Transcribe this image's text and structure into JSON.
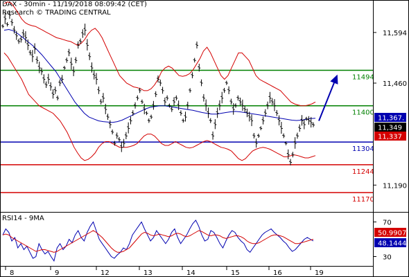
{
  "header": {
    "line1": "DAX - 30min - 11/19/2018 08:09:42 (CET)",
    "line2": "Research © TRADING CENTRAL"
  },
  "chart_data": {
    "type": "ohlc",
    "instrument": "DAX",
    "timeframe": "30min",
    "price_panel": {
      "y_ticks": [
        11594,
        11460,
        11190
      ],
      "y_tick_labels": [
        "11,594",
        "11,460",
        "11,190"
      ],
      "ylim": [
        11130,
        11680
      ],
      "levels": [
        {
          "label": "11494",
          "value": 11494,
          "color": "#008000"
        },
        {
          "label": "11400",
          "value": 11400,
          "color": "#008000"
        },
        {
          "label": "11304",
          "value": 11304,
          "color": "#0000b0"
        },
        {
          "label": "11244",
          "value": 11244,
          "color": "#d40000"
        },
        {
          "label": "11170",
          "value": 11170,
          "color": "#d40000"
        }
      ],
      "value_tags": [
        {
          "label": "11,367.",
          "value": 11367,
          "bg": "#0000b0",
          "fg": "#ffffff"
        },
        {
          "label": "11,349",
          "value": 11349,
          "bg": "#000000",
          "fg": "#ffffff"
        },
        {
          "label": "11,337",
          "value": 11337,
          "bg": "#d40000",
          "fg": "#ffffff"
        }
      ],
      "series": [
        {
          "name": "price",
          "color": "#000000",
          "style": "bar",
          "y": [
            11610,
            11630,
            11615,
            11640,
            11620,
            11600,
            11585,
            11570,
            11575,
            11590,
            11580,
            11560,
            11540,
            11530,
            11550,
            11520,
            11500,
            11490,
            11470,
            11455,
            11470,
            11450,
            11430,
            11440,
            11420,
            11460,
            11470,
            11500,
            11520,
            11540,
            11510,
            11490,
            11520,
            11560,
            11570,
            11590,
            11600,
            11560,
            11530,
            11500,
            11480,
            11470,
            11440,
            11410,
            11420,
            11390,
            11370,
            11350,
            11330,
            11300,
            11320,
            11310,
            11290,
            11300,
            11320,
            11340,
            11360,
            11380,
            11400,
            11420,
            11440,
            11410,
            11390,
            11380,
            11360,
            11370,
            11400,
            11430,
            11470,
            11460,
            11440,
            11410,
            11420,
            11400,
            11390,
            11410,
            11420,
            11400,
            11380,
            11360,
            11370,
            11400,
            11440,
            11480,
            11520,
            11560,
            11500,
            11460,
            11420,
            11400,
            11380,
            11360,
            11320,
            11350,
            11380,
            11400,
            11420,
            11440,
            11460,
            11440,
            11410,
            11390,
            11400,
            11420,
            11410,
            11400,
            11390,
            11380,
            11370,
            11360,
            11320,
            11300,
            11320,
            11340,
            11360,
            11380,
            11400,
            11420,
            11410,
            11400,
            11380,
            11360,
            11340,
            11320,
            11300,
            11270,
            11250,
            11270,
            11300,
            11320,
            11340,
            11360,
            11350,
            11365,
            11360,
            11355,
            11349
          ]
        },
        {
          "name": "bollinger-upper",
          "color": "#d40000",
          "style": "line",
          "y": [
            11670,
            11675,
            11672,
            11660,
            11645,
            11630,
            11620,
            11615,
            11612,
            11610,
            11605,
            11600,
            11595,
            11590,
            11585,
            11580,
            11578,
            11575,
            11572,
            11570,
            11565,
            11560,
            11565,
            11575,
            11590,
            11600,
            11605,
            11595,
            11580,
            11560,
            11540,
            11520,
            11500,
            11480,
            11470,
            11460,
            11455,
            11450,
            11448,
            11445,
            11440,
            11440,
            11445,
            11455,
            11470,
            11490,
            11500,
            11505,
            11500,
            11490,
            11480,
            11478,
            11480,
            11485,
            11495,
            11510,
            11525,
            11545,
            11555,
            11540,
            11520,
            11500,
            11480,
            11470,
            11480,
            11500,
            11520,
            11540,
            11540,
            11530,
            11520,
            11500,
            11480,
            11470,
            11465,
            11460,
            11455,
            11450,
            11445,
            11440,
            11430,
            11420,
            11410,
            11405,
            11402,
            11400,
            11400,
            11402,
            11405,
            11410
          ]
        },
        {
          "name": "bollinger-lower",
          "color": "#d40000",
          "style": "line",
          "y": [
            11540,
            11530,
            11515,
            11500,
            11485,
            11470,
            11450,
            11430,
            11420,
            11410,
            11400,
            11395,
            11390,
            11385,
            11380,
            11370,
            11360,
            11345,
            11330,
            11310,
            11290,
            11275,
            11262,
            11255,
            11258,
            11265,
            11275,
            11290,
            11300,
            11305,
            11305,
            11300,
            11295,
            11290,
            11290,
            11290,
            11292,
            11295,
            11300,
            11310,
            11320,
            11325,
            11325,
            11320,
            11310,
            11300,
            11295,
            11295,
            11300,
            11305,
            11300,
            11295,
            11290,
            11288,
            11290,
            11295,
            11300,
            11305,
            11308,
            11305,
            11300,
            11295,
            11290,
            11288,
            11285,
            11280,
            11270,
            11260,
            11255,
            11260,
            11270,
            11280,
            11285,
            11288,
            11290,
            11288,
            11285,
            11280,
            11275,
            11270,
            11265,
            11265,
            11268,
            11270,
            11268,
            11265,
            11262,
            11262,
            11265,
            11268
          ]
        },
        {
          "name": "moving-average",
          "color": "#0000b0",
          "style": "line",
          "y": [
            11600,
            11602,
            11598,
            11590,
            11580,
            11570,
            11560,
            11548,
            11535,
            11520,
            11505,
            11490,
            11470,
            11450,
            11430,
            11410,
            11395,
            11380,
            11370,
            11365,
            11360,
            11358,
            11357,
            11356,
            11358,
            11362,
            11368,
            11374,
            11380,
            11386,
            11392,
            11396,
            11398,
            11400,
            11400,
            11398,
            11396,
            11394,
            11392,
            11390,
            11388,
            11385,
            11382,
            11380,
            11378,
            11378,
            11380,
            11382,
            11384,
            11385,
            11384,
            11382,
            11380,
            11378,
            11376,
            11374,
            11372,
            11370,
            11368,
            11366,
            11364,
            11362,
            11361,
            11362,
            11364,
            11366,
            11367
          ]
        }
      ],
      "projection_arrow": {
        "from_value": 11360,
        "to_value": 11494,
        "color": "#0000b0"
      }
    },
    "rsi_panel": {
      "label": "RSI14 - 9MA",
      "y_ticks": [
        70,
        30
      ],
      "ylim": [
        20,
        80
      ],
      "value_tags": [
        {
          "label": "50.9907",
          "value": 50.9907,
          "bg": "#d40000",
          "fg": "#ffffff"
        },
        {
          "label": "48.1444",
          "value": 48.1444,
          "bg": "#0000b0",
          "fg": "#ffffff"
        }
      ],
      "series": [
        {
          "name": "RSI14",
          "color": "#0000b0",
          "y": [
            55,
            62,
            58,
            48,
            52,
            40,
            45,
            38,
            42,
            35,
            28,
            30,
            45,
            38,
            33,
            36,
            30,
            25,
            40,
            45,
            38,
            42,
            50,
            46,
            55,
            60,
            52,
            48,
            58,
            65,
            70,
            60,
            50,
            45,
            40,
            35,
            30,
            28,
            32,
            35,
            40,
            38,
            45,
            55,
            60,
            65,
            70,
            62,
            55,
            48,
            52,
            60,
            55,
            50,
            45,
            50,
            58,
            62,
            52,
            45,
            50,
            55,
            62,
            68,
            72,
            65,
            55,
            48,
            50,
            60,
            58,
            52,
            45,
            40,
            48,
            55,
            60,
            58,
            52,
            48,
            45,
            38,
            35,
            40,
            45,
            50,
            55,
            58,
            60,
            62,
            58,
            55,
            52,
            48,
            45,
            40,
            36,
            38,
            42,
            46,
            50,
            52,
            50,
            48
          ]
        },
        {
          "name": "9MA",
          "color": "#d40000",
          "y": [
            55,
            56,
            55,
            52,
            50,
            48,
            46,
            44,
            42,
            40,
            38,
            36,
            37,
            38,
            38,
            37,
            36,
            35,
            36,
            38,
            40,
            42,
            44,
            46,
            48,
            50,
            52,
            54,
            56,
            58,
            60,
            58,
            55,
            52,
            48,
            44,
            40,
            37,
            35,
            35,
            36,
            38,
            40,
            44,
            48,
            52,
            56,
            58,
            57,
            55,
            54,
            55,
            56,
            55,
            54,
            53,
            54,
            56,
            57,
            56,
            54,
            53,
            54,
            56,
            58,
            60,
            59,
            57,
            55,
            54,
            55,
            55,
            54,
            52,
            51,
            52,
            53,
            54,
            54,
            53,
            51,
            48,
            46,
            45,
            45,
            46,
            48,
            50,
            52,
            54,
            55,
            55,
            54,
            53,
            51,
            49,
            47,
            45,
            45,
            46,
            47,
            48,
            49,
            50
          ]
        }
      ]
    },
    "x_axis": {
      "tick_labels": [
        "8",
        "9",
        "12",
        "13",
        "14",
        "15",
        "16",
        "19"
      ]
    },
    "grid": false
  }
}
